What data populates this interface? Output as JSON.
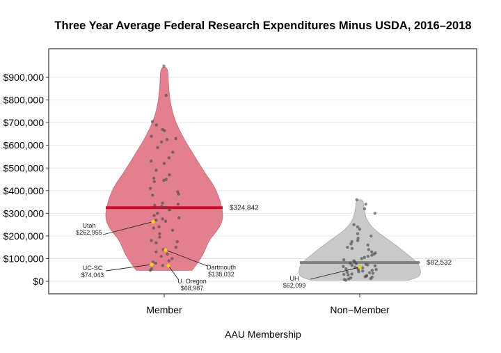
{
  "chart_data": {
    "type": "violin",
    "title": "Three Year Average Federal Research Expenditures Minus USDA, 2016–2018",
    "xlabel": "AAU Membership",
    "ylabel": "",
    "categories": [
      "Member",
      "Non−Member"
    ],
    "ylim": [
      -30000,
      1000000
    ],
    "y_ticks": [
      0,
      100000,
      200000,
      300000,
      400000,
      500000,
      600000,
      700000,
      800000,
      900000
    ],
    "y_tick_labels": [
      "$0",
      "$100,000",
      "$200,000",
      "$300,000",
      "$400,000",
      "$500,000",
      "$600,000",
      "$700,000",
      "$800,000",
      "$900,000"
    ],
    "grid": true,
    "series": [
      {
        "category": "Member",
        "color": "#e07585",
        "mean_color": "#c8102e",
        "mean": 324842,
        "mean_label": "$324,842",
        "points": [
          950000,
          820000,
          705000,
          690000,
          670000,
          665000,
          640000,
          630000,
          625000,
          615000,
          590000,
          570000,
          545000,
          530000,
          520000,
          490000,
          470000,
          455000,
          450000,
          445000,
          440000,
          410000,
          395000,
          385000,
          380000,
          345000,
          340000,
          335000,
          330000,
          325000,
          315000,
          300000,
          290000,
          280000,
          275000,
          270000,
          265000,
          240000,
          235000,
          225000,
          210000,
          195000,
          180000,
          175000,
          170000,
          150000,
          140000,
          130000,
          120000,
          110000,
          100000,
          90000,
          85000,
          80000,
          70000,
          55000,
          48000
        ],
        "highlights": [
          {
            "label": "Utah",
            "value_label": "$262,955",
            "value": 262955
          },
          {
            "label": "UC-SC",
            "value_label": "$74,043",
            "value": 74043
          },
          {
            "label": "Dartmouth",
            "value_label": "$138,032",
            "value": 138032
          },
          {
            "label": "U. Oregon",
            "value_label": "$68,987",
            "value": 68987
          }
        ]
      },
      {
        "category": "Non−Member",
        "color": "#c4c4c4",
        "mean_color": "#808080",
        "mean": 82532,
        "mean_label": "$82,532",
        "points": [
          360000,
          340000,
          320000,
          300000,
          250000,
          240000,
          230000,
          210000,
          200000,
          190000,
          180000,
          175000,
          165000,
          160000,
          150000,
          145000,
          140000,
          130000,
          125000,
          120000,
          115000,
          110000,
          105000,
          100000,
          95000,
          90000,
          85000,
          80000,
          78000,
          75000,
          72000,
          70000,
          68000,
          65000,
          62000,
          60000,
          58000,
          55000,
          52000,
          50000,
          48000,
          45000,
          42000,
          40000,
          38000,
          35000,
          32000,
          30000,
          28000,
          25000,
          22000,
          20000,
          18000,
          15000,
          12000,
          10000,
          8000,
          5000
        ],
        "highlights": [
          {
            "label": "UH",
            "value_label": "$62,099",
            "value": 62099
          }
        ]
      }
    ]
  }
}
